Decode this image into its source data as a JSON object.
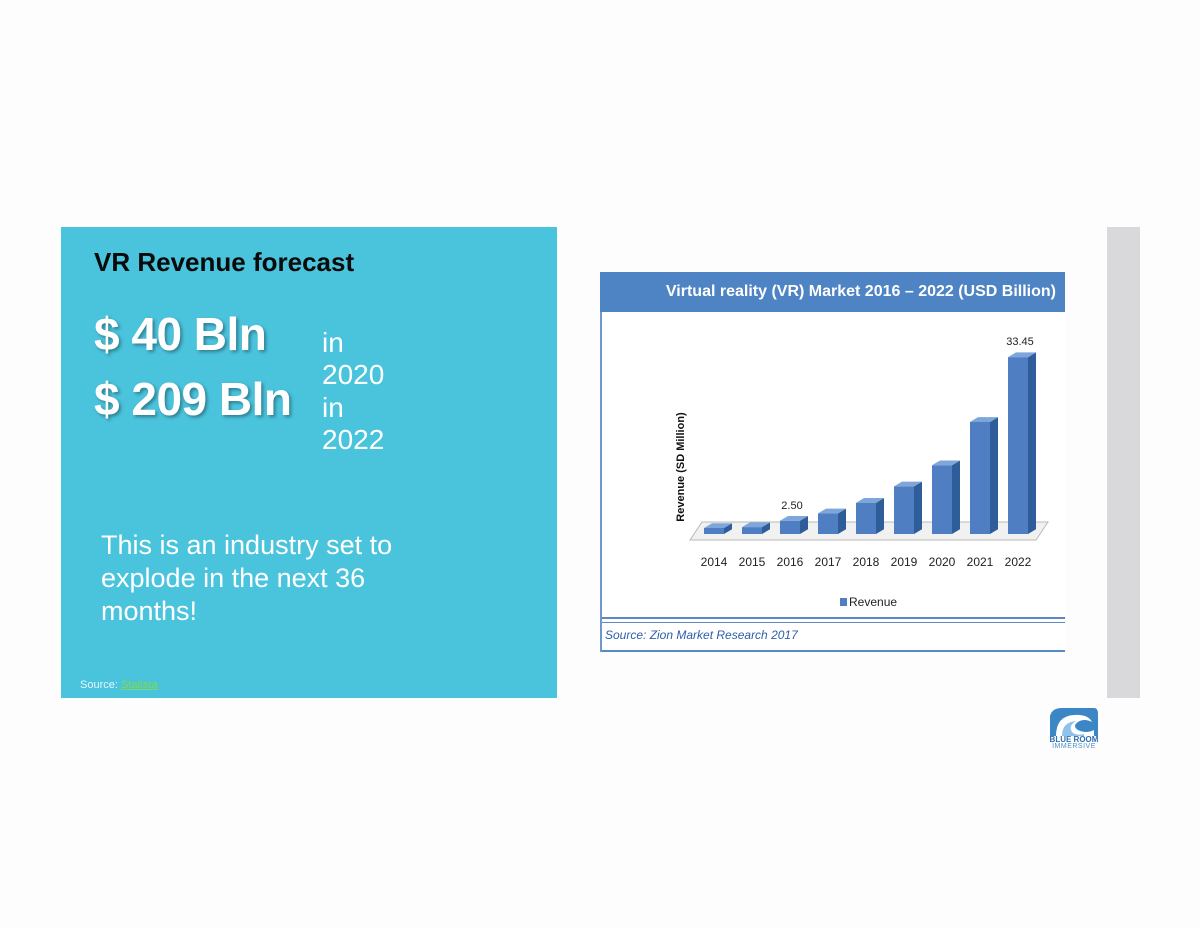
{
  "panel": {
    "title": "VR Revenue forecast",
    "stats": [
      {
        "value": "$ 40 Bln",
        "year": "in 2020"
      },
      {
        "value": "$ 209 Bln",
        "year": "in 2022"
      }
    ],
    "tagline": "This is an industry set to explode in the next 36 months!",
    "source_label": "Source:",
    "source_link": "Statista"
  },
  "chart_data": {
    "type": "bar",
    "title": "Virtual reality (VR)  Market 2016 – 2022 (USD Billion)",
    "ylabel": "Revenue (SD Million)",
    "xlabel": "",
    "categories": [
      "2014",
      "2015",
      "2016",
      "2017",
      "2018",
      "2019",
      "2020",
      "2021",
      "2022"
    ],
    "series": [
      {
        "name": "Revenue",
        "values": [
          0.9,
          1.3,
          2.5,
          3.9,
          5.9,
          9.0,
          13.0,
          21.2,
          33.45
        ]
      }
    ],
    "data_labels": [
      {
        "category": "2016",
        "text": "2.50"
      },
      {
        "category": "2022",
        "text": "33.45"
      }
    ],
    "ylim": [
      0,
      35
    ],
    "grid": false,
    "legend": "bottom-center",
    "bar_color": "#4f7fc2",
    "source": "Source: Zion Market Research 2017"
  },
  "logo": {
    "line1": "BLUE ROOM",
    "line2": "IMMERSIVE",
    "color": "#2f6fb3"
  }
}
